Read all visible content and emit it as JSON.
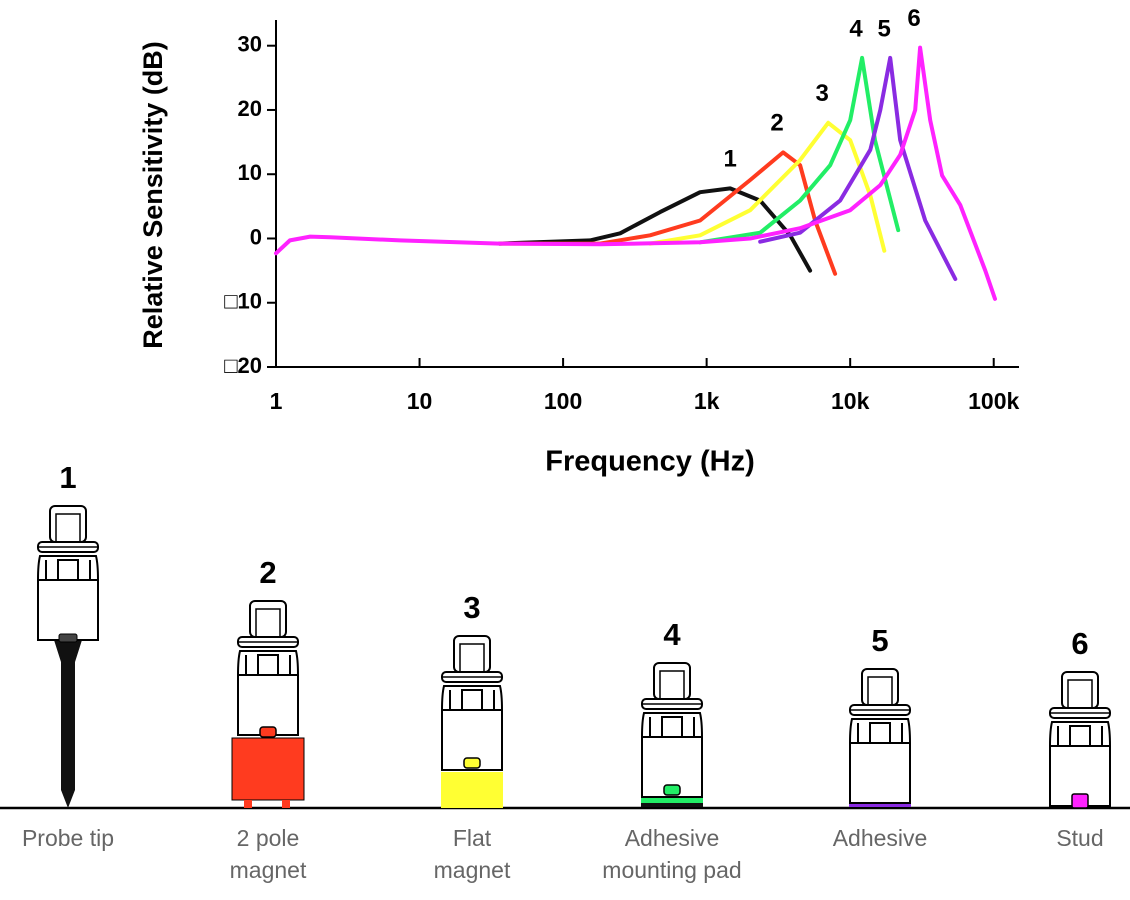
{
  "chart_data": {
    "type": "line",
    "y_label": "Relative Sensitivity (dB)",
    "x_label": "Frequency (Hz)",
    "log_x": true,
    "xlim": [
      1,
      150000
    ],
    "ylim": [
      -20,
      34
    ],
    "xticks": [
      1,
      10,
      100,
      {
        "value": 1000,
        "label": "1k"
      },
      {
        "value": 10000,
        "label": "10k"
      },
      {
        "value": 100000,
        "label": "100k"
      }
    ],
    "yticks": [
      30,
      20,
      10,
      0,
      {
        "value": -10,
        "label": "□10"
      },
      {
        "value": -20,
        "label": "□20"
      }
    ],
    "series": [
      {
        "name": "1",
        "color": "#111111",
        "x": [
          36,
          154,
          250,
          474,
          901,
          1460,
          2360,
          3820,
          5260
        ],
        "values": [
          -0.8,
          -0.3,
          0.8,
          4.1,
          7.2,
          7.8,
          5.9,
          0.5,
          -5
        ]
      },
      {
        "name": "2",
        "color": "#ff3b1f",
        "x": [
          36,
          181,
          404,
          901,
          2010,
          3410,
          4480,
          5700,
          7850
        ],
        "values": [
          -0.8,
          -0.8,
          0.5,
          2.8,
          9.1,
          13.4,
          11.4,
          2.8,
          -5.5
        ]
      },
      {
        "name": "3",
        "color": "#ffff33",
        "x": [
          404,
          901,
          2010,
          4480,
          7030,
          10000,
          13800,
          17300
        ],
        "values": [
          -0.8,
          0.5,
          4.4,
          12.2,
          18,
          15.3,
          6.7,
          -1.9
        ]
      },
      {
        "name": "4",
        "color": "#22ee66",
        "x": [
          901,
          2360,
          4480,
          7260,
          10000,
          12100,
          14900,
          21600
        ],
        "values": [
          -0.6,
          0.9,
          5.9,
          11.4,
          18.4,
          28.1,
          15.3,
          1.3
        ]
      },
      {
        "name": "5",
        "color": "#8a2be2",
        "x": [
          2360,
          4480,
          8510,
          13800,
          16200,
          19000,
          22300,
          33300,
          54000
        ],
        "values": [
          -0.5,
          0.9,
          5.9,
          13.8,
          20,
          28.1,
          15.3,
          2.8,
          -6.3
        ]
      },
      {
        "name": "6",
        "color": "#ff22ff",
        "x": [
          1,
          1.25,
          1.73,
          2.38,
          7.3,
          36,
          181,
          901,
          2010,
          4480,
          10000,
          16200,
          22300,
          28400,
          30700,
          36100,
          43700,
          58500,
          87300,
          102000
        ],
        "values": [
          -2.3,
          -0.3,
          0.3,
          0.2,
          -0.3,
          -0.8,
          -0.9,
          -0.6,
          0,
          1.6,
          4.4,
          8.3,
          13,
          20,
          29.7,
          18.4,
          9.8,
          5.2,
          -5,
          -9.4
        ]
      }
    ]
  },
  "mounts": [
    {
      "number": "1",
      "label": [
        "Probe tip"
      ],
      "color": "#111111"
    },
    {
      "number": "2",
      "label": [
        "2 pole",
        "magnet"
      ],
      "color": "#ff3b1f"
    },
    {
      "number": "3",
      "label": [
        "Flat",
        "magnet"
      ],
      "color": "#ffff33"
    },
    {
      "number": "4",
      "label": [
        "Adhesive",
        "mounting pad"
      ],
      "color": "#22ee66"
    },
    {
      "number": "5",
      "label": [
        "Adhesive"
      ],
      "color": "#8a2be2"
    },
    {
      "number": "6",
      "label": [
        "Stud"
      ],
      "color": "#ff22ff"
    }
  ]
}
